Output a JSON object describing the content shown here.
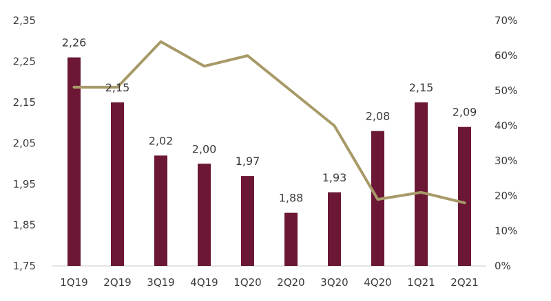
{
  "chart_data": {
    "type": "bar",
    "categories": [
      "1Q19",
      "2Q19",
      "3Q19",
      "4Q19",
      "1Q20",
      "2Q20",
      "3Q20",
      "4Q20",
      "1Q21",
      "2Q21"
    ],
    "bar_series": {
      "values": [
        2.26,
        2.15,
        2.02,
        2.0,
        1.97,
        1.88,
        1.93,
        2.08,
        2.15,
        2.09
      ],
      "labels": [
        "2,26",
        "2,15",
        "2,02",
        "2,00",
        "1,97",
        "1,88",
        "1,93",
        "2,08",
        "2,15",
        "2,09"
      ],
      "color": "#6b1735"
    },
    "line_series": {
      "type": "line",
      "axis": "right",
      "values_percent": [
        51,
        51,
        64,
        57,
        60,
        50,
        40,
        19,
        21,
        18
      ],
      "color": "#a89a68"
    },
    "y_left": {
      "range": [
        1.75,
        2.35
      ],
      "ticks": [
        1.75,
        1.85,
        1.95,
        2.05,
        2.15,
        2.25,
        2.35
      ],
      "tick_labels": [
        "1,75",
        "1,85",
        "1,95",
        "2,05",
        "2,15",
        "2,25",
        "2,35"
      ]
    },
    "y_right": {
      "range": [
        0,
        70
      ],
      "ticks": [
        0,
        10,
        20,
        30,
        40,
        50,
        60,
        70
      ],
      "tick_labels": [
        "0%",
        "10%",
        "20%",
        "30%",
        "40%",
        "50%",
        "60%",
        "70%"
      ]
    },
    "title": "",
    "xlabel": "",
    "ylabel": "",
    "grid": false,
    "legend": "none"
  }
}
